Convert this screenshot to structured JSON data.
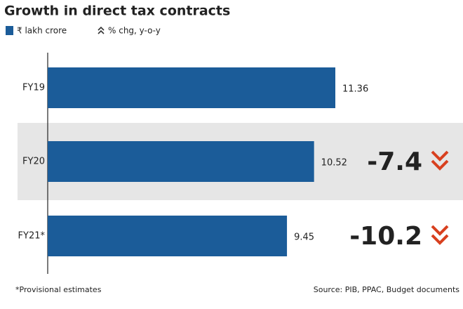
{
  "chart_data": {
    "type": "bar",
    "orientation": "horizontal",
    "title": "Growth in direct tax contracts",
    "categories": [
      "FY19",
      "FY20",
      "FY21*"
    ],
    "series": [
      {
        "name": "₹ lakh crore",
        "color": "#1b5c99",
        "values": [
          11.36,
          10.52,
          9.45
        ]
      },
      {
        "name": "% chg, y-o-y",
        "color": "#d8401f",
        "values": [
          null,
          -7.4,
          -10.2
        ]
      }
    ],
    "footnote": "*Provisional estimates",
    "source": "Source: PIB, PPAC, Budget documents"
  }
}
